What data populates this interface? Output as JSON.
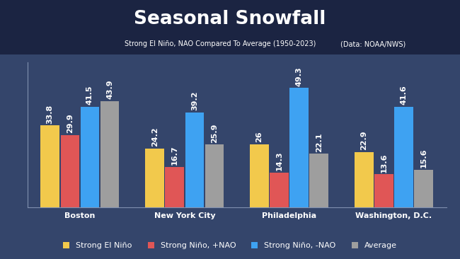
{
  "chart_data": {
    "type": "bar",
    "title": "Seasonal Snowfall",
    "subtitle": "Strong El Niño, NAO Compared To Average (1950-2023)",
    "source": "(Data: NOAA/NWS)",
    "categories": [
      "Boston",
      "New York City",
      "Philadelphia",
      "Washington, D.C."
    ],
    "series": [
      {
        "name": "Strong El Niño",
        "color": "#f2c94c",
        "values": [
          33.8,
          24.2,
          26,
          22.9
        ]
      },
      {
        "name": "Strong Niño, +NAO",
        "color": "#e05656",
        "values": [
          29.9,
          16.7,
          14.3,
          13.6
        ]
      },
      {
        "name": "Strong Niño, -NAO",
        "color": "#3ea2f2",
        "values": [
          41.5,
          39.2,
          49.3,
          41.6
        ]
      },
      {
        "name": "Average",
        "color": "#9e9e9e",
        "values": [
          43.9,
          25.9,
          22.1,
          15.6
        ]
      }
    ],
    "ylim": [
      0,
      60
    ],
    "data_labels": true,
    "tick_labels": "x",
    "legend": "lower center"
  }
}
